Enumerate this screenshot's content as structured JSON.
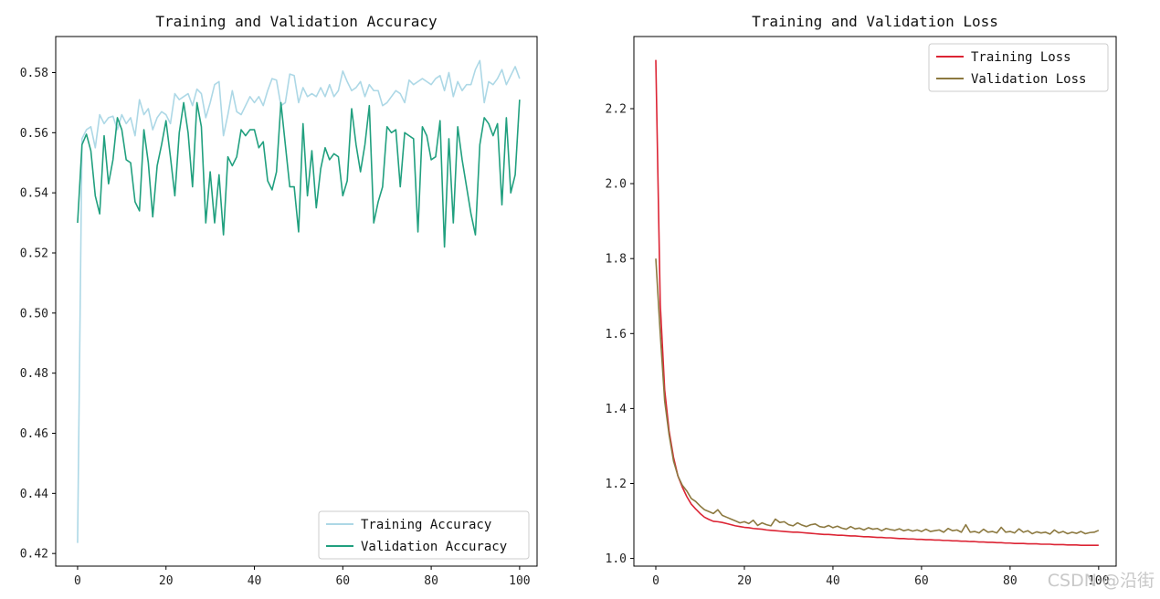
{
  "watermark": "CSDN @沿街",
  "chart_data": [
    {
      "type": "line",
      "title": "Training and Validation Accuracy",
      "xlabel": "",
      "ylabel": "",
      "xlim": [
        -4.95,
        103.95
      ],
      "ylim": [
        0.4158,
        0.592
      ],
      "xticks": [
        0,
        20,
        40,
        60,
        80,
        100
      ],
      "yticks": [
        0.42,
        0.44,
        0.46,
        0.48,
        0.5,
        0.52,
        0.54,
        0.56,
        0.58
      ],
      "ytick_decimals": 2,
      "grid": false,
      "legend_position": "lower right",
      "series": [
        {
          "name": "Training Accuracy",
          "color": "#add8e6",
          "values": [
            0.4235,
            0.558,
            0.561,
            0.562,
            0.555,
            0.566,
            0.563,
            0.565,
            0.5655,
            0.561,
            0.566,
            0.563,
            0.565,
            0.559,
            0.571,
            0.566,
            0.568,
            0.561,
            0.565,
            0.567,
            0.566,
            0.563,
            0.573,
            0.571,
            0.572,
            0.573,
            0.569,
            0.5745,
            0.573,
            0.565,
            0.57,
            0.576,
            0.577,
            0.559,
            0.566,
            0.574,
            0.567,
            0.566,
            0.569,
            0.572,
            0.57,
            0.572,
            0.569,
            0.574,
            0.578,
            0.5775,
            0.569,
            0.57,
            0.5795,
            0.579,
            0.57,
            0.575,
            0.572,
            0.573,
            0.572,
            0.575,
            0.572,
            0.576,
            0.572,
            0.574,
            0.5805,
            0.577,
            0.574,
            0.575,
            0.577,
            0.572,
            0.576,
            0.574,
            0.574,
            0.569,
            0.57,
            0.572,
            0.574,
            0.573,
            0.57,
            0.5775,
            0.576,
            0.577,
            0.578,
            0.577,
            0.576,
            0.578,
            0.579,
            0.574,
            0.58,
            0.572,
            0.577,
            0.574,
            0.576,
            0.576,
            0.581,
            0.584,
            0.57,
            0.577,
            0.576,
            0.578,
            0.581,
            0.576,
            0.579,
            0.582,
            0.578
          ]
        },
        {
          "name": "Validation Accuracy",
          "color": "#21a07f",
          "values": [
            0.53,
            0.556,
            0.5595,
            0.554,
            0.539,
            0.533,
            0.559,
            0.543,
            0.551,
            0.565,
            0.561,
            0.551,
            0.55,
            0.537,
            0.534,
            0.561,
            0.55,
            0.532,
            0.549,
            0.556,
            0.564,
            0.552,
            0.539,
            0.56,
            0.57,
            0.56,
            0.542,
            0.57,
            0.562,
            0.53,
            0.547,
            0.53,
            0.546,
            0.526,
            0.552,
            0.549,
            0.552,
            0.561,
            0.559,
            0.561,
            0.561,
            0.555,
            0.557,
            0.544,
            0.541,
            0.547,
            0.57,
            0.556,
            0.542,
            0.542,
            0.527,
            0.563,
            0.539,
            0.554,
            0.535,
            0.548,
            0.555,
            0.551,
            0.553,
            0.552,
            0.539,
            0.544,
            0.568,
            0.556,
            0.547,
            0.556,
            0.569,
            0.53,
            0.537,
            0.542,
            0.562,
            0.56,
            0.561,
            0.542,
            0.56,
            0.559,
            0.558,
            0.527,
            0.562,
            0.559,
            0.551,
            0.552,
            0.564,
            0.522,
            0.558,
            0.53,
            0.562,
            0.551,
            0.542,
            0.533,
            0.526,
            0.556,
            0.565,
            0.563,
            0.559,
            0.563,
            0.536,
            0.565,
            0.54,
            0.546,
            0.571
          ]
        }
      ]
    },
    {
      "type": "line",
      "title": "Training and Validation Loss",
      "xlabel": "",
      "ylabel": "",
      "xlim": [
        -4.95,
        103.95
      ],
      "ylim": [
        0.9795,
        2.3925
      ],
      "xticks": [
        0,
        20,
        40,
        60,
        80,
        100
      ],
      "yticks": [
        1.0,
        1.2,
        1.4,
        1.6,
        1.8,
        2.0,
        2.2
      ],
      "ytick_decimals": 1,
      "grid": false,
      "legend_position": "upper right",
      "series": [
        {
          "name": "Training Loss",
          "color": "#dc2434",
          "values": [
            2.33,
            1.68,
            1.45,
            1.34,
            1.27,
            1.22,
            1.19,
            1.165,
            1.145,
            1.132,
            1.12,
            1.11,
            1.104,
            1.099,
            1.098,
            1.096,
            1.093,
            1.09,
            1.087,
            1.085,
            1.083,
            1.082,
            1.08,
            1.079,
            1.078,
            1.076,
            1.075,
            1.074,
            1.073,
            1.072,
            1.071,
            1.07,
            1.07,
            1.069,
            1.068,
            1.067,
            1.066,
            1.065,
            1.064,
            1.064,
            1.063,
            1.062,
            1.062,
            1.061,
            1.06,
            1.06,
            1.059,
            1.058,
            1.058,
            1.057,
            1.056,
            1.056,
            1.055,
            1.055,
            1.054,
            1.053,
            1.053,
            1.052,
            1.052,
            1.051,
            1.051,
            1.05,
            1.05,
            1.049,
            1.049,
            1.048,
            1.048,
            1.047,
            1.047,
            1.046,
            1.046,
            1.045,
            1.045,
            1.044,
            1.044,
            1.043,
            1.043,
            1.042,
            1.042,
            1.041,
            1.041,
            1.04,
            1.04,
            1.04,
            1.039,
            1.039,
            1.039,
            1.038,
            1.038,
            1.038,
            1.037,
            1.037,
            1.037,
            1.036,
            1.036,
            1.036,
            1.035,
            1.035,
            1.035,
            1.035,
            1.035
          ]
        },
        {
          "name": "Validation Loss",
          "color": "#8c7940",
          "values": [
            1.8,
            1.6,
            1.42,
            1.33,
            1.26,
            1.22,
            1.195,
            1.18,
            1.16,
            1.152,
            1.14,
            1.13,
            1.125,
            1.12,
            1.13,
            1.115,
            1.11,
            1.105,
            1.1,
            1.095,
            1.098,
            1.093,
            1.102,
            1.088,
            1.095,
            1.09,
            1.087,
            1.105,
            1.096,
            1.098,
            1.09,
            1.087,
            1.095,
            1.089,
            1.085,
            1.09,
            1.092,
            1.085,
            1.083,
            1.088,
            1.082,
            1.086,
            1.081,
            1.078,
            1.085,
            1.079,
            1.081,
            1.076,
            1.082,
            1.078,
            1.08,
            1.074,
            1.08,
            1.077,
            1.075,
            1.079,
            1.074,
            1.077,
            1.073,
            1.076,
            1.072,
            1.078,
            1.072,
            1.074,
            1.076,
            1.07,
            1.08,
            1.074,
            1.076,
            1.07,
            1.09,
            1.07,
            1.072,
            1.068,
            1.078,
            1.07,
            1.072,
            1.068,
            1.083,
            1.07,
            1.072,
            1.068,
            1.079,
            1.07,
            1.074,
            1.066,
            1.071,
            1.068,
            1.07,
            1.065,
            1.076,
            1.068,
            1.072,
            1.066,
            1.07,
            1.067,
            1.072,
            1.066,
            1.069,
            1.07,
            1.075
          ]
        }
      ]
    }
  ]
}
